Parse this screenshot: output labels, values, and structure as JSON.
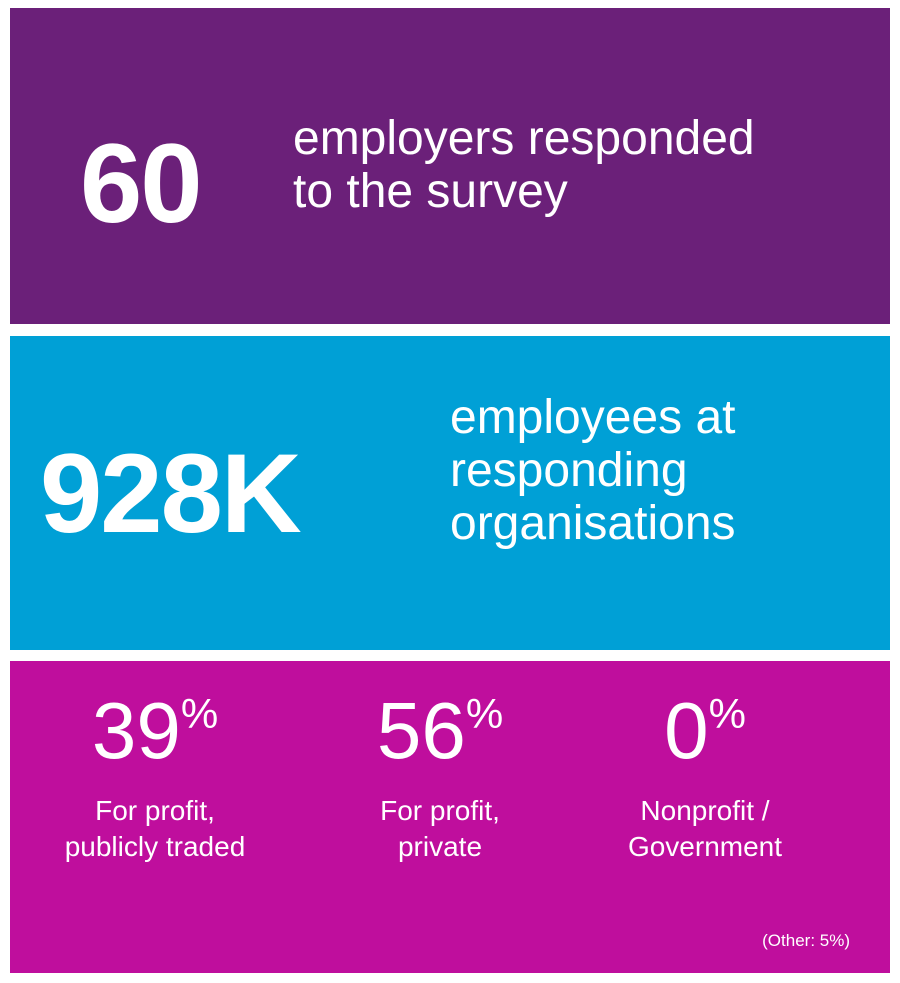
{
  "colors": {
    "panel_1": "#6b2079",
    "panel_2": "#00a0d6",
    "panel_3": "#bf0e9d"
  },
  "respondents": {
    "value": "60",
    "line_1": "employers responded",
    "line_2": "to the survey"
  },
  "employees": {
    "value": "928K",
    "line_1": "employees at",
    "line_2": "responding",
    "line_3": "organisations"
  },
  "sectors": [
    {
      "value": "39",
      "sign": "%",
      "line_1": "For profit,",
      "line_2": "publicly traded"
    },
    {
      "value": "56",
      "sign": "%",
      "line_1": "For profit,",
      "line_2": "private"
    },
    {
      "value": "0",
      "sign": "%",
      "line_1": "Nonprofit /",
      "line_2": "Government"
    }
  ],
  "other_note": "(Other: 5%)"
}
